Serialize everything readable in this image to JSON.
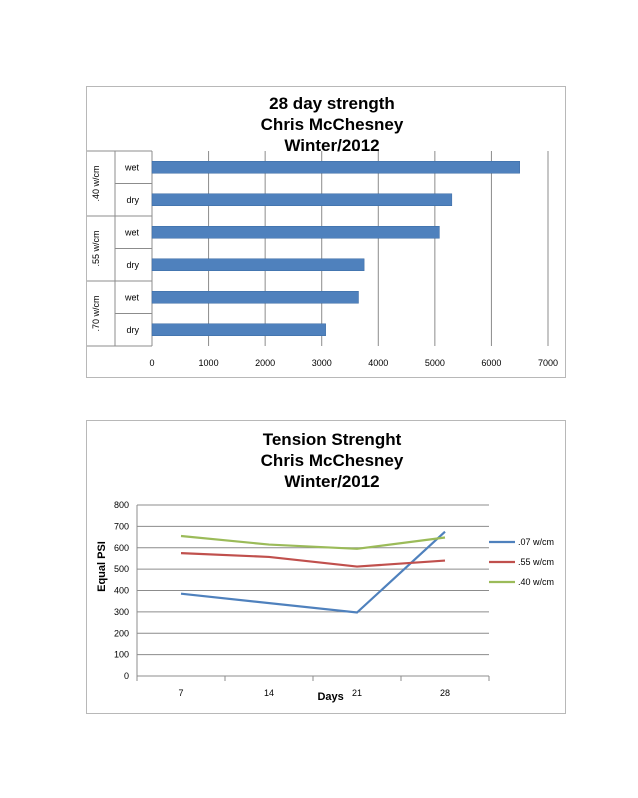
{
  "chart_data": [
    {
      "type": "bar",
      "orientation": "horizontal",
      "title": [
        "28 day strength",
        "Chris McChesney",
        "Winter/2012"
      ],
      "groups": [
        {
          "label": ".40 w/cm",
          "categories": [
            "wet",
            "dry"
          ],
          "values": [
            6500,
            5300
          ]
        },
        {
          "label": ".55 w/cm",
          "categories": [
            "wet",
            "dry"
          ],
          "values": [
            5080,
            3750
          ]
        },
        {
          "label": ".70 w/cm",
          "categories": [
            "wet",
            "dry"
          ],
          "values": [
            3650,
            3070
          ]
        }
      ],
      "xlim": [
        0,
        7000
      ],
      "xticks": [
        0,
        1000,
        2000,
        3000,
        4000,
        5000,
        6000,
        7000
      ],
      "grid": true,
      "bar_color": "#4f81bd"
    },
    {
      "type": "line",
      "title": [
        "Tension Strenght",
        "Chris McChesney",
        "Winter/2012"
      ],
      "xlabel": "Days",
      "ylabel": "Equal PSI",
      "x": [
        7,
        14,
        21,
        28
      ],
      "ylim": [
        0,
        800
      ],
      "yticks": [
        0,
        100,
        200,
        300,
        400,
        500,
        600,
        700,
        800
      ],
      "grid": true,
      "legend": "right",
      "series": [
        {
          "name": ".07 w/cm",
          "values": [
            385,
            null,
            297,
            675
          ],
          "color": "#4f81bd"
        },
        {
          "name": ".55 w/cm",
          "values": [
            575,
            557,
            512,
            540
          ],
          "color": "#c0504d"
        },
        {
          "name": ".40 w/cm",
          "values": [
            655,
            615,
            595,
            648
          ],
          "color": "#9bbb59"
        }
      ]
    }
  ]
}
